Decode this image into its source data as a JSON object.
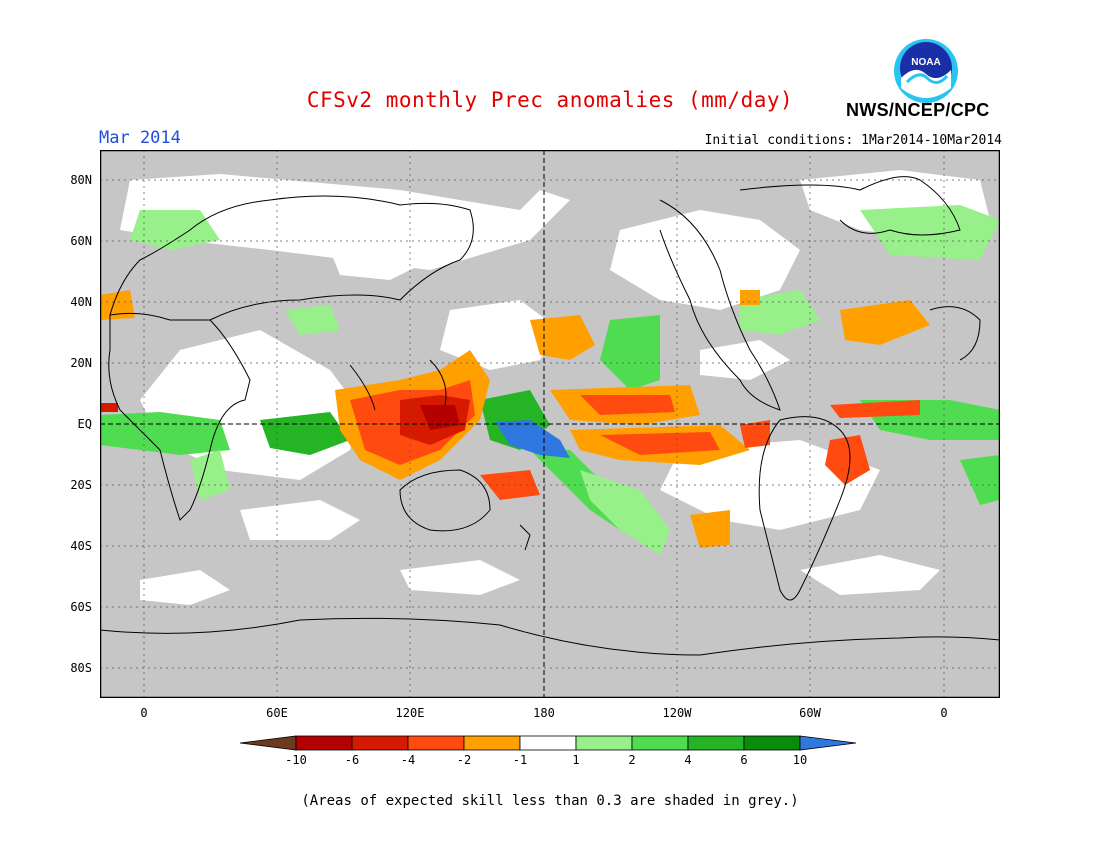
{
  "header": {
    "title": "CFSv2 monthly Prec anomalies (mm/day)",
    "month": "Mar 2014",
    "initial_conditions": "Initial conditions: 1Mar2014-10Mar2014",
    "agency": "NWS/NCEP/CPC",
    "logo_text": "NOAA"
  },
  "axes": {
    "lat_labels": [
      "80N",
      "60N",
      "40N",
      "20N",
      "EQ",
      "20S",
      "40S",
      "60S",
      "80S"
    ],
    "lon_labels": [
      "0",
      "60E",
      "120E",
      "180",
      "120W",
      "60W",
      "0"
    ]
  },
  "legend": {
    "labels": [
      "-10",
      "-6",
      "-4",
      "-2",
      "-1",
      "1",
      "2",
      "4",
      "6",
      "10"
    ],
    "colors": [
      "#6b3a20",
      "#b40000",
      "#d61a00",
      "#ff4a10",
      "#ffa000",
      "#ffffff",
      "#98f08a",
      "#50dc50",
      "#24b424",
      "#0a8c0a",
      "#2f78e0"
    ]
  },
  "footnote": "(Areas of expected skill less than 0.3 are shaded in grey.)"
}
